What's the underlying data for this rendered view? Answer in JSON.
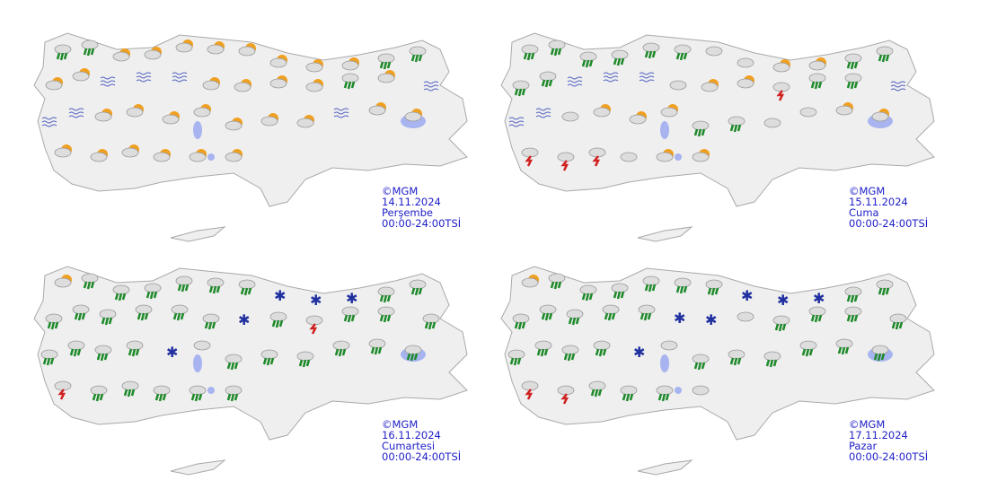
{
  "maps": [
    {
      "copyright": "©MGM",
      "date": "14.11.2024",
      "day": "Perşembe",
      "period": "00:00-24:00TSİ",
      "icons": [
        "rain",
        "rain",
        "sun-cloud",
        "sun-cloud",
        "sun-cloud",
        "sun-cloud",
        "sun-cloud",
        "sun-cloud",
        "sun-cloud",
        "sun-cloud",
        "rain",
        "rain",
        "sun-cloud",
        "sun-cloud",
        "fog",
        "fog",
        "fog",
        "sun-cloud",
        "sun-cloud",
        "sun-cloud",
        "sun-cloud",
        "rain",
        "sun-cloud",
        "fog",
        "fog",
        "fog",
        "sun-cloud",
        "sun-cloud",
        "sun-cloud",
        "sun-cloud",
        "sun-cloud",
        "sun-cloud",
        "sun-cloud",
        "fog",
        "sun-cloud",
        "sun-cloud",
        "sun-cloud",
        "sun-cloud",
        "sun-cloud",
        "sun-cloud",
        "sun-cloud",
        "sun-cloud"
      ]
    },
    {
      "copyright": "©MGM",
      "date": "15.11.2024",
      "day": "Cuma",
      "period": "00:00-24:00TSİ",
      "icons": [
        "rain",
        "rain",
        "rain",
        "rain",
        "rain",
        "rain",
        "cloud",
        "cloud",
        "sun-cloud",
        "sun-cloud",
        "rain",
        "rain",
        "rain",
        "rain",
        "fog",
        "fog",
        "fog",
        "cloud",
        "sun-cloud",
        "sun-cloud",
        "thunder",
        "rain",
        "rain",
        "fog",
        "fog",
        "fog",
        "cloud",
        "sun-cloud",
        "sun-cloud",
        "sun-cloud",
        "rain",
        "rain",
        "cloud",
        "cloud",
        "sun-cloud",
        "sun-cloud",
        "thunder",
        "thunder",
        "thunder",
        "cloud",
        "sun-cloud",
        "sun-cloud"
      ]
    },
    {
      "copyright": "©MGM",
      "date": "16.11.2024",
      "day": "Cumartesi",
      "period": "00:00-24:00TSİ",
      "icons": [
        "sun-cloud",
        "rain",
        "rain",
        "rain",
        "rain",
        "rain",
        "rain",
        "snow",
        "snow",
        "snow",
        "rain",
        "rain",
        "rain",
        "rain",
        "rain",
        "rain",
        "rain",
        "rain",
        "snow",
        "rain",
        "thunder",
        "rain",
        "rain",
        "rain",
        "rain",
        "rain",
        "rain",
        "rain",
        "snow",
        "cloud",
        "rain",
        "rain",
        "rain",
        "rain",
        "rain",
        "rain",
        "thunder",
        "rain",
        "rain",
        "rain",
        "rain",
        "rain"
      ]
    },
    {
      "copyright": "©MGM",
      "date": "17.11.2024",
      "day": "Pazar",
      "period": "00:00-24:00TSİ",
      "icons": [
        "sun-cloud",
        "rain",
        "rain",
        "rain",
        "rain",
        "rain",
        "rain",
        "snow",
        "snow",
        "snow",
        "rain",
        "rain",
        "rain",
        "rain",
        "rain",
        "rain",
        "rain",
        "snow",
        "snow",
        "cloud",
        "rain",
        "rain",
        "rain",
        "rain",
        "rain",
        "rain",
        "rain",
        "rain",
        "snow",
        "cloud",
        "rain",
        "rain",
        "rain",
        "rain",
        "rain",
        "rain",
        "thunder",
        "thunder",
        "rain",
        "rain",
        "rain",
        "cloud"
      ]
    }
  ],
  "colors": {
    "label": "#2020c8",
    "land": "#efefef",
    "border": "#a9a9a9",
    "lake": "#a8b4f0"
  }
}
